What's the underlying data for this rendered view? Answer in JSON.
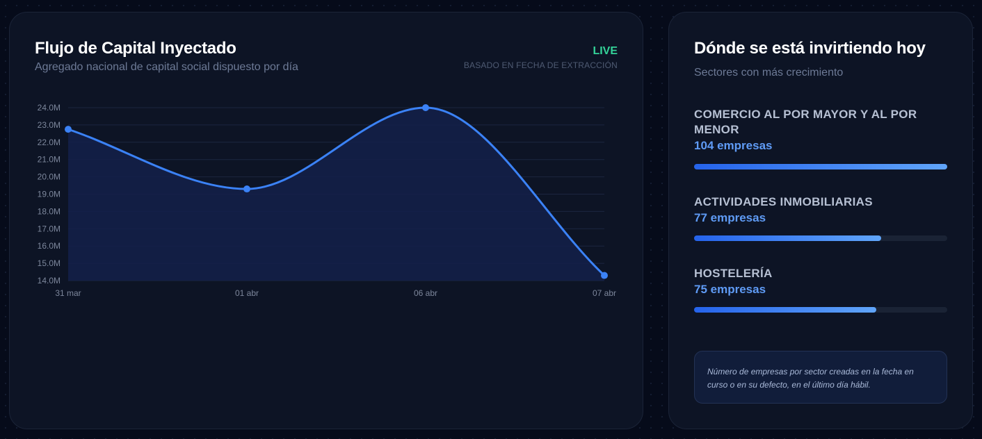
{
  "chart_card": {
    "title": "Flujo de Capital Inyectado",
    "subtitle": "Agregado nacional de capital social dispuesto por día",
    "live_label": "LIVE",
    "live_note": "BASADO EN FECHA DE EXTRACCIÓN"
  },
  "chart_data": {
    "type": "area",
    "categories": [
      "31 mar",
      "01 abr",
      "06 abr",
      "07 abr"
    ],
    "values": [
      22.75,
      19.3,
      24.0,
      14.3
    ],
    "ylim": [
      14,
      24
    ],
    "yticks": [
      "24.0M",
      "23.0M",
      "22.0M",
      "21.0M",
      "20.0M",
      "19.0M",
      "18.0M",
      "17.0M",
      "16.0M",
      "15.0M",
      "14.0M"
    ],
    "grid": true,
    "line_color": "#3b82f6",
    "fill_color": "#14204a"
  },
  "sectors_card": {
    "title": "Dónde se está invirtiendo hoy",
    "subtitle": "Sectores con más crecimiento",
    "sectors": [
      {
        "name": "COMERCIO AL POR MAYOR Y AL POR MENOR",
        "count": "104 empresas",
        "fill": 1.0
      },
      {
        "name": "ACTIVIDADES INMOBILIARIAS",
        "count": "77 empresas",
        "fill": 0.74
      },
      {
        "name": "HOSTELERÍA",
        "count": "75 empresas",
        "fill": 0.72
      }
    ],
    "note": "Número de empresas por sector creadas en la fecha en curso o en su defecto, en el último día hábil."
  }
}
